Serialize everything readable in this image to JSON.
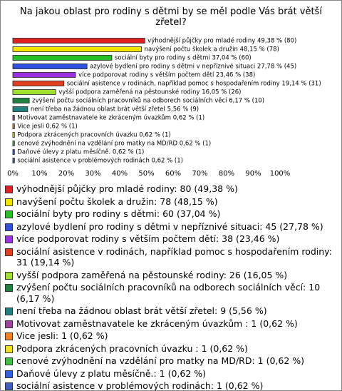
{
  "chart_data": {
    "type": "bar",
    "orientation": "horizontal",
    "title": "Na jakou oblast pro rodiny s dětmi by se měl podle Vás brát větší zřetel?",
    "categories": [
      "výhodnější půjčky pro mladé rodiny 49,38 % (80)",
      "navýšení počtu školek a družin 48,15 % (78)",
      "sociální byty pro rodiny s dětmi 37,04 % (60)",
      "azylové bydlení pro rodiny s dětmi v nepříznivé situaci 27,78 % (45)",
      "více podporovat rodiny s větším počtem dětí 23,46 % (38)",
      "sociální asistence v rodinách, například pomoc s hospodařením rodiny 19,14 % (31)",
      "vyšší podpora zaměřená na pěstounské rodiny 16,05 % (26)",
      "zvýšení počtu sociálních pracovníků na odborech sociálních věcí 6,17 % (10)",
      "není třeba na žádnou oblast brát větší zřetel 5,56 % (9)",
      "Motivovat zaměstnavatele ke zkráceným úvazkům  0,62 % (1)",
      "Vice jesli 0,62 % (1)",
      "Podpora zkrácených pracovních úvazku  0,62 % (1)",
      "cenové zvýhodnění na vzdělání pro matky na MD/RD 0,62 % (1)",
      "Daňové úlevy z platu měsíčně. 0,62 % (1)",
      "sociální asistence v problémových rodinách 0,62 % (1)"
    ],
    "values": [
      49.38,
      48.15,
      37.04,
      27.78,
      23.46,
      19.14,
      16.05,
      6.17,
      5.56,
      0.62,
      0.62,
      0.62,
      0.62,
      0.62,
      0.62
    ],
    "colors": [
      "#e02020",
      "#f5e400",
      "#28c028",
      "#3050e0",
      "#9a30e0",
      "#e04020",
      "#a0e030",
      "#208040",
      "#208080",
      "#a040a0",
      "#f08020",
      "#f0e020",
      "#40c040",
      "#3060e0",
      "#4060c0"
    ],
    "legend": [
      "výhodnější půjčky pro mladé rodiny: 80 (49,38 %)",
      "navýšení počtu školek a družin: 78 (48,15 %)",
      "sociální byty pro rodiny s dětmi: 60 (37,04 %)",
      "azylové bydlení pro rodiny s dětmi v nepříznivé situaci: 45 (27,78 %)",
      "více podporovat rodiny s větším počtem dětí: 38 (23,46 %)",
      "sociální asistence v rodinách, například pomoc s hospodařením rodiny: 31 (19,14 %)",
      "vyšší podpora zaměřená na pěstounské rodiny: 26 (16,05 %)",
      "zvýšení počtu sociálních pracovníků na odborech sociálních věcí: 10 (6,17 %)",
      "není třeba na žádnou oblast brát větší zřetel: 9 (5,56 %)",
      "Motivovat zaměstnavatele ke zkráceným úvazkům : 1 (0,62 %)",
      "Vice jesli: 1 (0,62 %)",
      "Podpora zkrácených pracovních úvazku : 1 (0,62 %)",
      "cenové zvýhodnění na vzdělání pro matky na MD/RD: 1 (0,62 %)",
      "Daňové úlevy z platu měsíčně.: 1 (0,62 %)",
      "sociální asistence v problémových rodinách: 1 (0,62 %)"
    ],
    "xlim": [
      0,
      100
    ],
    "xticks": [
      {
        "value": 0,
        "label": "0%"
      },
      {
        "value": 10,
        "label": "10%"
      },
      {
        "value": 20,
        "label": "20%"
      },
      {
        "value": 30,
        "label": "30%"
      },
      {
        "value": 40,
        "label": "40%"
      },
      {
        "value": 50,
        "label": "50%"
      },
      {
        "value": 60,
        "label": "60%"
      },
      {
        "value": 70,
        "label": "70%"
      },
      {
        "value": 80,
        "label": "80%"
      },
      {
        "value": 90,
        "label": "90%"
      },
      {
        "value": 100,
        "label": "100%"
      }
    ]
  }
}
